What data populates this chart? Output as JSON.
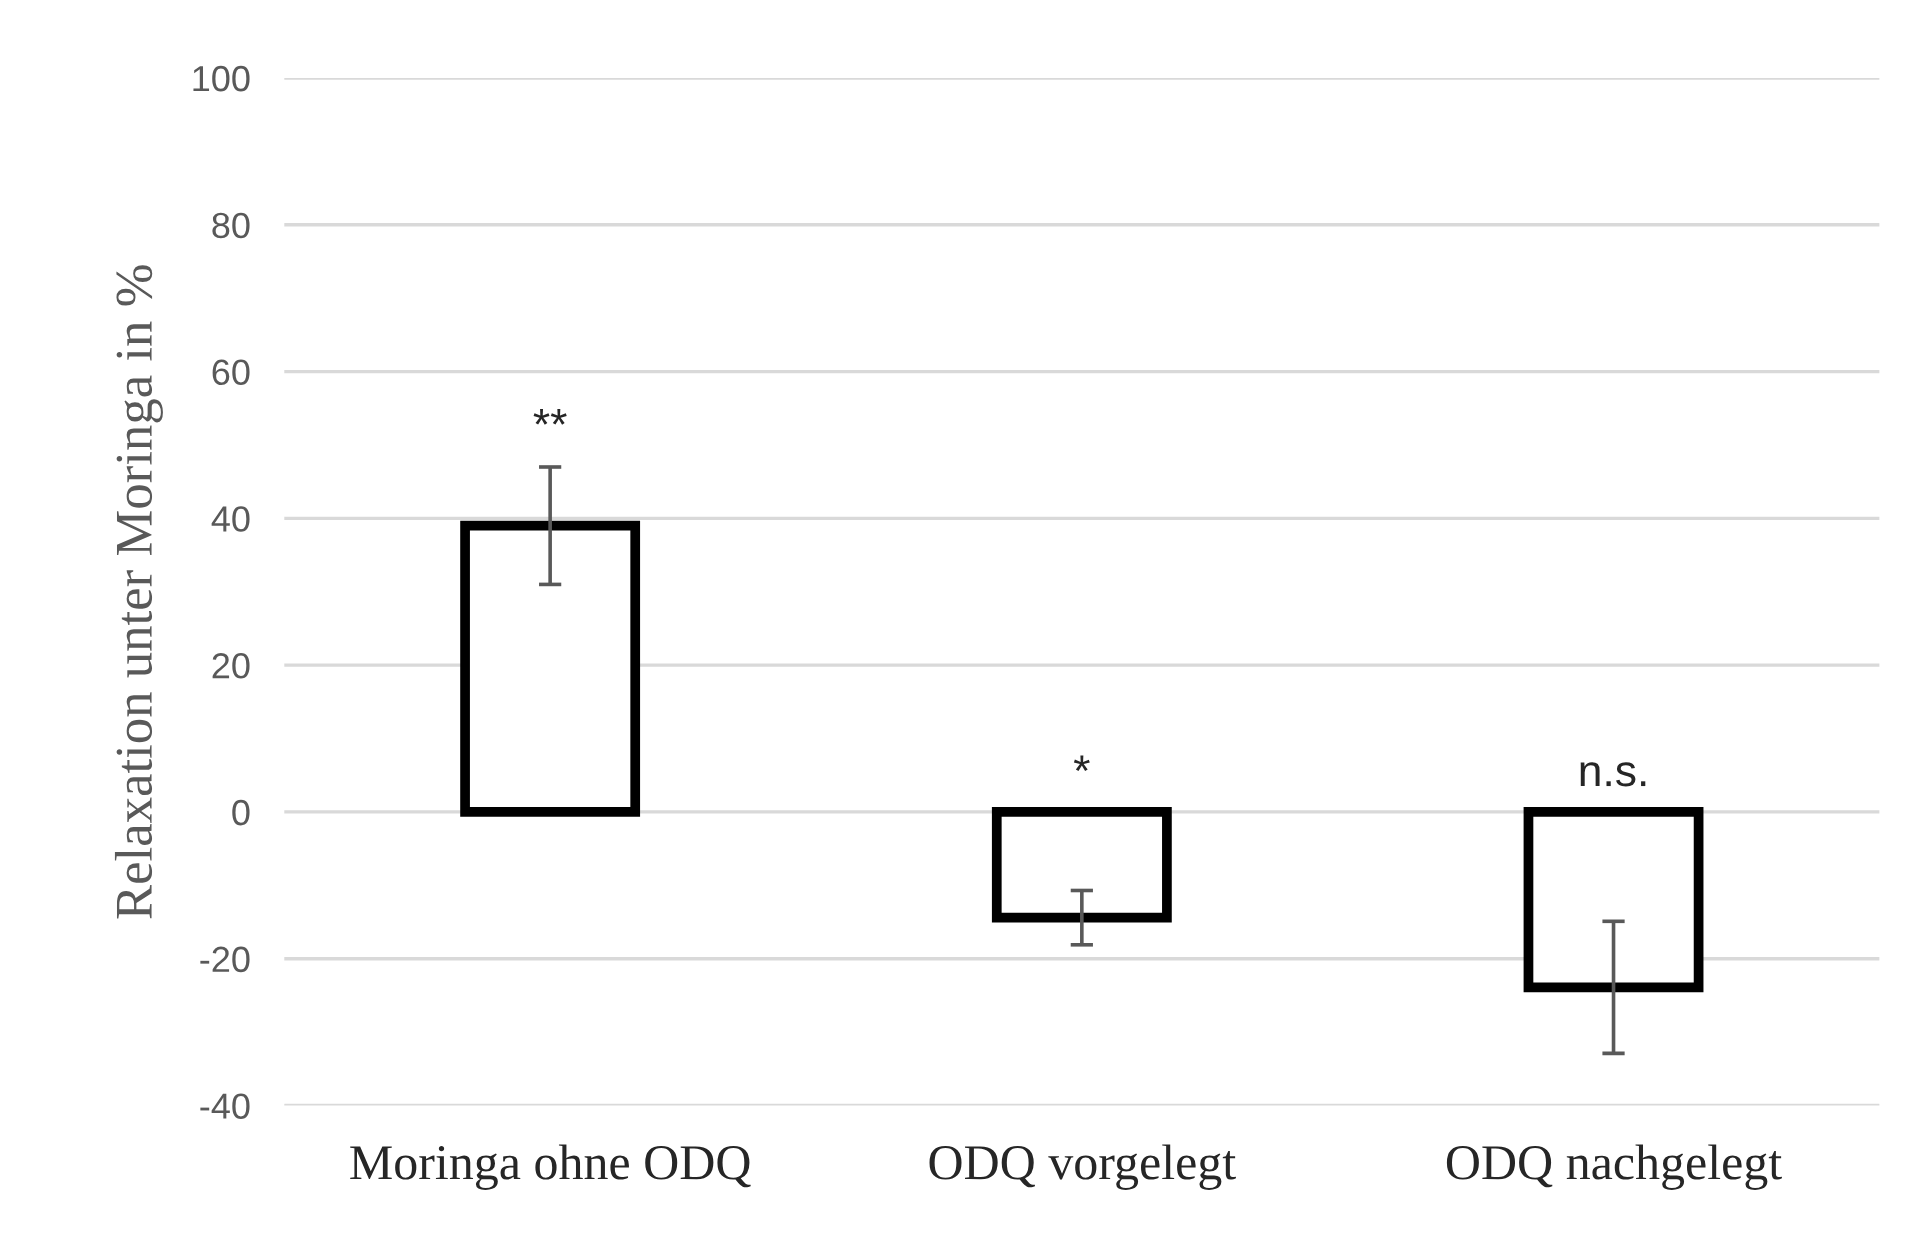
{
  "chart_data": {
    "type": "bar",
    "ylabel": "Relaxation unter Moringa in %",
    "categories": [
      "Moringa ohne ODQ",
      "ODQ vorgelegt",
      "ODQ nachgelegt"
    ],
    "series": [
      {
        "color": "#ffffff",
        "values": [
          39,
          -14.4,
          -23.9
        ],
        "errors": [
          8,
          3.7,
          9
        ]
      }
    ],
    "ylim": [
      -40,
      100
    ],
    "yticks": [
      -40,
      -20,
      0,
      20,
      40,
      60,
      80,
      100
    ],
    "grid": "y",
    "annotations": [
      {
        "text": "**",
        "x": "Moringa ohne ODQ",
        "y": 47.2
      },
      {
        "text": "*",
        "x": "ODQ vorgelegt",
        "y": 0
      },
      {
        "text": "n.s.",
        "x": "ODQ nachgelegt",
        "y": 0
      }
    ]
  }
}
